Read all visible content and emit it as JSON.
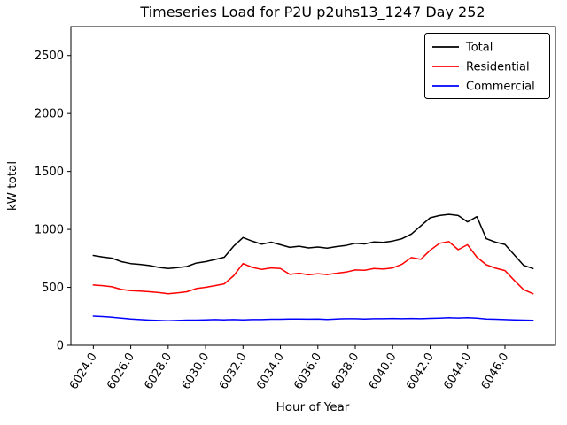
{
  "chart_data": {
    "type": "line",
    "title": "Timeseries Load for P2U p2uhs13_1247  Day 252",
    "xlabel": "Hour of Year",
    "ylabel": "kW total",
    "xlim": [
      6022.8,
      6048.7
    ],
    "ylim": [
      0,
      2750
    ],
    "grid": false,
    "legend_position": "upper right",
    "x_start": 6024.0,
    "x_step": 0.5,
    "x_ticks": {
      "values": [
        6024,
        6026,
        6028,
        6030,
        6032,
        6034,
        6036,
        6038,
        6040,
        6042,
        6044,
        6046
      ],
      "labels": [
        "6024.0",
        "6026.0",
        "6028.0",
        "6030.0",
        "6032.0",
        "6034.0",
        "6036.0",
        "6038.0",
        "6040.0",
        "6042.0",
        "6044.0",
        "6046.0"
      ]
    },
    "y_ticks": {
      "values": [
        0,
        500,
        1000,
        1500,
        2000,
        2500
      ],
      "labels": [
        "0",
        "500",
        "1000",
        "1500",
        "2000",
        "2500"
      ]
    },
    "series": [
      {
        "name": "Total",
        "color": "#000000",
        "values": [
          775,
          762,
          752,
          722,
          705,
          698,
          688,
          672,
          662,
          670,
          680,
          710,
          722,
          740,
          760,
          855,
          930,
          898,
          872,
          890,
          868,
          845,
          855,
          840,
          848,
          838,
          852,
          862,
          880,
          875,
          892,
          888,
          900,
          920,
          960,
          1030,
          1100,
          1120,
          1130,
          1120,
          1065,
          1110,
          920,
          890,
          870,
          780,
          690,
          662
        ]
      },
      {
        "name": "Residential",
        "color": "#ff0000",
        "values": [
          520,
          515,
          505,
          482,
          472,
          468,
          462,
          455,
          445,
          452,
          462,
          490,
          500,
          515,
          530,
          600,
          705,
          672,
          655,
          668,
          662,
          612,
          622,
          608,
          618,
          610,
          622,
          632,
          650,
          648,
          662,
          658,
          668,
          700,
          758,
          742,
          820,
          880,
          895,
          825,
          868,
          760,
          695,
          665,
          645,
          560,
          480,
          445
        ]
      },
      {
        "name": "Commercial",
        "color": "#0000ff",
        "values": [
          252,
          248,
          242,
          235,
          228,
          222,
          218,
          215,
          212,
          215,
          218,
          218,
          220,
          222,
          220,
          222,
          220,
          222,
          222,
          225,
          225,
          228,
          228,
          226,
          228,
          224,
          228,
          230,
          230,
          228,
          230,
          230,
          232,
          230,
          232,
          230,
          233,
          235,
          238,
          236,
          238,
          235,
          228,
          225,
          222,
          220,
          218,
          216
        ]
      }
    ]
  }
}
